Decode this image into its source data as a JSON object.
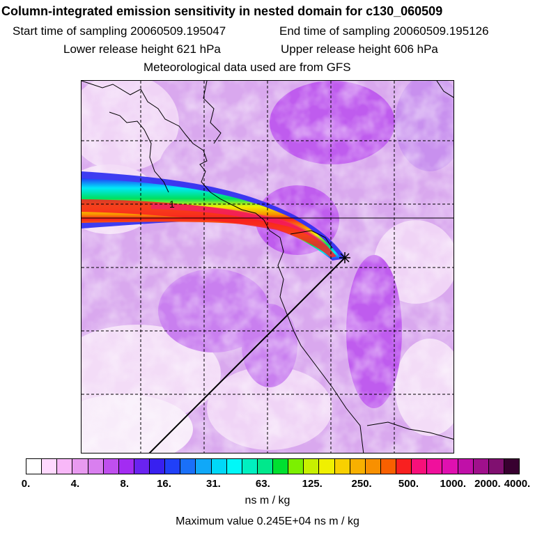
{
  "header": {
    "title": "Column-integrated emission sensitivity in nested domain for c130_060509",
    "start_label": "Start time of sampling 20060509.195047",
    "end_label": "End time of sampling 20060509.195126",
    "lower_label": "Lower release height  621 hPa",
    "upper_label": "Upper release height  606 hPa",
    "met_label": "Meteorological data used are from GFS"
  },
  "map": {
    "contour_label": "1",
    "release_marker": "release-point-star",
    "grid_lines": "dashed",
    "background_color": "#d9a8ee"
  },
  "colorbar": {
    "colors": [
      "#ffffff",
      "#ffd9ff",
      "#f8b8f8",
      "#e89af0",
      "#d97fef",
      "#bf4fee",
      "#a32cf2",
      "#6a23f0",
      "#3820f0",
      "#2040f8",
      "#1a70f8",
      "#10a8f8",
      "#00d8f8",
      "#00f8f8",
      "#00f0c0",
      "#00e88c",
      "#00e030",
      "#7cf000",
      "#c8f000",
      "#f0f000",
      "#f8d000",
      "#f8b000",
      "#f89000",
      "#f86000",
      "#f82020",
      "#f8107a",
      "#f0109c",
      "#e010b0",
      "#c010a8",
      "#a0108c",
      "#801070",
      "#380030"
    ],
    "tick_labels": [
      "0.",
      "4.",
      "8.",
      "16.",
      "31.",
      "63.",
      "125.",
      "250.",
      "500.",
      "1000.",
      "2000.",
      "4000."
    ],
    "unit": "ns m / kg",
    "max_value_text": "Maximum value  0.245E+04 ns m / kg"
  }
}
